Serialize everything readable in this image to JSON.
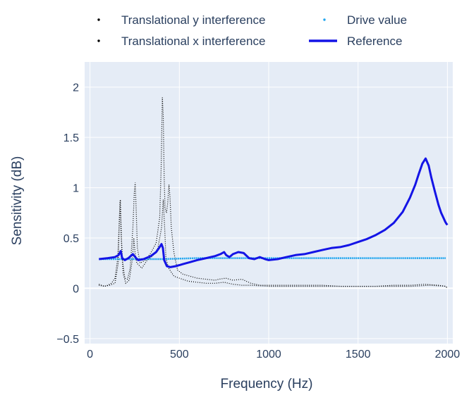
{
  "chart_data": {
    "type": "line",
    "xlabel": "Frequency (Hz)",
    "ylabel": "Sensitivity (dB)",
    "xlim": [
      -30,
      2030
    ],
    "ylim": [
      -0.55,
      2.25
    ],
    "x_ticks": [
      0,
      500,
      1000,
      1500,
      2000
    ],
    "x_tick_labels": [
      "0",
      "500",
      "1000",
      "1500",
      "2000"
    ],
    "y_ticks": [
      -0.5,
      0,
      0.5,
      1,
      1.5,
      2
    ],
    "y_tick_labels": [
      "−0.5",
      "0",
      "0.5",
      "1",
      "1.5",
      "2"
    ],
    "grid": true,
    "legend_placement": "top",
    "plot_background": "#e5ecf6",
    "series": [
      {
        "name": "Translational y interference",
        "style": "dotted",
        "color": "#000000",
        "points": [
          [
            50,
            0.04
          ],
          [
            80,
            0.02
          ],
          [
            100,
            0.03
          ],
          [
            120,
            0.05
          ],
          [
            140,
            0.1
          ],
          [
            155,
            0.3
          ],
          [
            162,
            0.6
          ],
          [
            168,
            0.87
          ],
          [
            173,
            0.6
          ],
          [
            180,
            0.3
          ],
          [
            195,
            0.1
          ],
          [
            210,
            0.09
          ],
          [
            225,
            0.2
          ],
          [
            240,
            0.6
          ],
          [
            248,
            0.95
          ],
          [
            253,
            1.05
          ],
          [
            258,
            0.8
          ],
          [
            265,
            0.4
          ],
          [
            280,
            0.25
          ],
          [
            310,
            0.28
          ],
          [
            340,
            0.35
          ],
          [
            370,
            0.45
          ],
          [
            390,
            0.7
          ],
          [
            398,
            1.2
          ],
          [
            405,
            1.9
          ],
          [
            410,
            1.7
          ],
          [
            415,
            1.1
          ],
          [
            420,
            0.8
          ],
          [
            428,
            0.75
          ],
          [
            435,
            0.85
          ],
          [
            442,
            1.03
          ],
          [
            448,
            0.9
          ],
          [
            455,
            0.6
          ],
          [
            470,
            0.35
          ],
          [
            490,
            0.18
          ],
          [
            520,
            0.14
          ],
          [
            560,
            0.12
          ],
          [
            600,
            0.1
          ],
          [
            650,
            0.09
          ],
          [
            700,
            0.08
          ],
          [
            720,
            0.09
          ],
          [
            760,
            0.1
          ],
          [
            800,
            0.08
          ],
          [
            850,
            0.09
          ],
          [
            900,
            0.05
          ],
          [
            950,
            0.03
          ],
          [
            1000,
            0.03
          ],
          [
            1100,
            0.03
          ],
          [
            1200,
            0.03
          ],
          [
            1300,
            0.03
          ],
          [
            1400,
            0.02
          ],
          [
            1500,
            0.02
          ],
          [
            1600,
            0.02
          ],
          [
            1700,
            0.03
          ],
          [
            1800,
            0.03
          ],
          [
            1870,
            0.04
          ],
          [
            1950,
            0.03
          ],
          [
            1990,
            0.02
          ],
          [
            2000,
            0.0
          ]
        ]
      },
      {
        "name": "Translational x interference",
        "style": "dotted",
        "color": "#000000",
        "points": [
          [
            50,
            0.03
          ],
          [
            80,
            0.02
          ],
          [
            110,
            0.03
          ],
          [
            140,
            0.05
          ],
          [
            158,
            0.25
          ],
          [
            165,
            0.7
          ],
          [
            170,
            0.88
          ],
          [
            176,
            0.5
          ],
          [
            185,
            0.15
          ],
          [
            200,
            0.05
          ],
          [
            220,
            0.08
          ],
          [
            238,
            0.3
          ],
          [
            245,
            0.5
          ],
          [
            252,
            0.35
          ],
          [
            262,
            0.25
          ],
          [
            290,
            0.2
          ],
          [
            320,
            0.28
          ],
          [
            350,
            0.32
          ],
          [
            380,
            0.4
          ],
          [
            400,
            0.6
          ],
          [
            410,
            0.88
          ],
          [
            418,
            0.6
          ],
          [
            425,
            0.3
          ],
          [
            440,
            0.2
          ],
          [
            470,
            0.12
          ],
          [
            500,
            0.1
          ],
          [
            550,
            0.07
          ],
          [
            600,
            0.06
          ],
          [
            650,
            0.05
          ],
          [
            700,
            0.05
          ],
          [
            750,
            0.06
          ],
          [
            800,
            0.04
          ],
          [
            850,
            0.03
          ],
          [
            900,
            0.03
          ],
          [
            1000,
            0.02
          ],
          [
            1200,
            0.02
          ],
          [
            1400,
            0.02
          ],
          [
            1600,
            0.02
          ],
          [
            1800,
            0.02
          ],
          [
            1900,
            0.03
          ],
          [
            1990,
            0.02
          ],
          [
            2000,
            0.0
          ]
        ]
      },
      {
        "name": "Drive value",
        "style": "markers",
        "color": "#1fa5ef",
        "points": [
          [
            50,
            0.29
          ],
          [
            200,
            0.29
          ],
          [
            400,
            0.29
          ],
          [
            600,
            0.3
          ],
          [
            800,
            0.3
          ],
          [
            1000,
            0.3
          ],
          [
            1200,
            0.3
          ],
          [
            1400,
            0.3
          ],
          [
            1600,
            0.3
          ],
          [
            1800,
            0.3
          ],
          [
            1990,
            0.3
          ]
        ]
      },
      {
        "name": "Reference",
        "style": "line",
        "color": "#1414e6",
        "points": [
          [
            50,
            0.29
          ],
          [
            100,
            0.3
          ],
          [
            140,
            0.31
          ],
          [
            160,
            0.33
          ],
          [
            172,
            0.37
          ],
          [
            180,
            0.3
          ],
          [
            195,
            0.28
          ],
          [
            215,
            0.3
          ],
          [
            240,
            0.34
          ],
          [
            258,
            0.3
          ],
          [
            270,
            0.28
          ],
          [
            300,
            0.29
          ],
          [
            340,
            0.32
          ],
          [
            370,
            0.36
          ],
          [
            390,
            0.41
          ],
          [
            400,
            0.44
          ],
          [
            408,
            0.4
          ],
          [
            415,
            0.28
          ],
          [
            430,
            0.22
          ],
          [
            450,
            0.21
          ],
          [
            480,
            0.22
          ],
          [
            520,
            0.24
          ],
          [
            560,
            0.26
          ],
          [
            600,
            0.28
          ],
          [
            650,
            0.3
          ],
          [
            700,
            0.32
          ],
          [
            730,
            0.34
          ],
          [
            750,
            0.36
          ],
          [
            762,
            0.33
          ],
          [
            780,
            0.31
          ],
          [
            800,
            0.34
          ],
          [
            830,
            0.36
          ],
          [
            860,
            0.35
          ],
          [
            890,
            0.3
          ],
          [
            920,
            0.29
          ],
          [
            950,
            0.31
          ],
          [
            980,
            0.29
          ],
          [
            1000,
            0.28
          ],
          [
            1050,
            0.29
          ],
          [
            1100,
            0.31
          ],
          [
            1150,
            0.33
          ],
          [
            1200,
            0.34
          ],
          [
            1250,
            0.36
          ],
          [
            1300,
            0.38
          ],
          [
            1350,
            0.4
          ],
          [
            1400,
            0.41
          ],
          [
            1450,
            0.43
          ],
          [
            1500,
            0.46
          ],
          [
            1550,
            0.49
          ],
          [
            1600,
            0.53
          ],
          [
            1650,
            0.58
          ],
          [
            1700,
            0.65
          ],
          [
            1750,
            0.76
          ],
          [
            1790,
            0.9
          ],
          [
            1820,
            1.03
          ],
          [
            1840,
            1.14
          ],
          [
            1860,
            1.24
          ],
          [
            1878,
            1.29
          ],
          [
            1895,
            1.22
          ],
          [
            1910,
            1.1
          ],
          [
            1930,
            0.96
          ],
          [
            1950,
            0.83
          ],
          [
            1965,
            0.75
          ],
          [
            1978,
            0.7
          ],
          [
            1988,
            0.66
          ],
          [
            1995,
            0.64
          ],
          [
            2000,
            0.63
          ]
        ]
      }
    ]
  }
}
